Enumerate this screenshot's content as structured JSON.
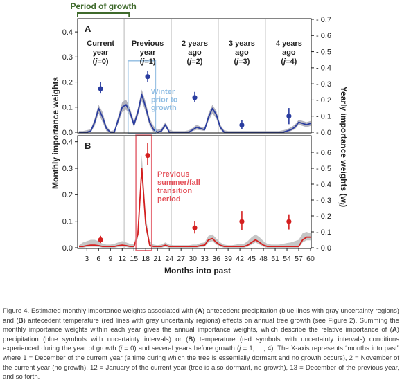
{
  "figure": {
    "growth_bracket_label": "Period of growth",
    "x_label": "Months into past",
    "y_left_label": "Monthly importance weights",
    "y_right_label": "Yearly importance weights (w",
    "y_right_label_sub": "j",
    "y_right_label_end": ")",
    "panel_a_letter": "A",
    "panel_b_letter": "B",
    "year_labels": [
      {
        "l1": "Current",
        "l2": "year",
        "j": "0"
      },
      {
        "l1": "Previous",
        "l2": "year",
        "j": "1"
      },
      {
        "l1": "2 years",
        "l2": "ago",
        "j": "2"
      },
      {
        "l1": "3 years",
        "l2": "ago",
        "j": "3"
      },
      {
        "l1": "4 years",
        "l2": "ago",
        "j": "4"
      }
    ],
    "annotation_a": [
      "Winter",
      "prior to",
      "growth"
    ],
    "annotation_b": [
      "Previous",
      "summer/fall",
      "transition",
      "period"
    ],
    "colors": {
      "precip": "#2a3da0",
      "precip_band": "#a8a8b4",
      "temp": "#d41f1f",
      "temp_band": "#bcbcbc",
      "winter_box": "#9cc3e4",
      "winter_text": "#8fbde3",
      "summer_box": "#e6707a",
      "summer_text": "#e4525a",
      "growth_bracket": "#3f6a2c",
      "year_divider": "#b8b8b8"
    }
  },
  "chart_data": [
    {
      "type": "line",
      "panel": "A",
      "x_ticks": [
        3,
        6,
        9,
        12,
        15,
        18,
        21,
        24,
        27,
        30,
        33,
        36,
        39,
        42,
        45,
        48,
        51,
        54,
        57,
        60
      ],
      "xlim": [
        1,
        60
      ],
      "ylim_left": [
        0,
        0.45
      ],
      "left_ticks": [
        0.0,
        0.1,
        0.2,
        0.3,
        0.4
      ],
      "ylim_right": [
        0,
        0.7
      ],
      "right_ticks": [
        0.0,
        0.1,
        0.2,
        0.3,
        0.4,
        0.5,
        0.6,
        0.7
      ],
      "year_dividers": [
        12.5,
        24.5,
        36.5,
        48.5
      ],
      "growth_period": [
        1,
        12
      ],
      "monthly_x": [
        1,
        2,
        3,
        4,
        5,
        6,
        7,
        8,
        9,
        10,
        11,
        12,
        13,
        14,
        15,
        16,
        17,
        18,
        19,
        20,
        21,
        22,
        23,
        24,
        25,
        26,
        27,
        28,
        29,
        30,
        31,
        32,
        33,
        34,
        35,
        36,
        37,
        38,
        39,
        40,
        41,
        42,
        43,
        44,
        45,
        46,
        47,
        48,
        49,
        50,
        51,
        52,
        53,
        54,
        55,
        56,
        57,
        58,
        59,
        60
      ],
      "monthly_values": [
        0.0,
        0.0,
        0.0,
        0.005,
        0.04,
        0.095,
        0.06,
        0.015,
        0.0,
        0.0,
        0.05,
        0.1,
        0.11,
        0.08,
        0.03,
        0.08,
        0.15,
        0.1,
        0.04,
        0.01,
        0.0,
        0.005,
        0.03,
        0.0,
        0.0,
        0.0,
        0.0,
        0.0,
        0.0,
        0.01,
        0.02,
        0.015,
        0.01,
        0.06,
        0.095,
        0.07,
        0.02,
        0.0,
        0.0,
        0.0,
        0.0,
        0.0,
        0.0,
        0.0,
        0.0,
        0.0,
        0.0,
        0.0,
        0.0,
        0.0,
        0.0,
        0.0,
        0.0,
        0.005,
        0.01,
        0.02,
        0.04,
        0.035,
        0.03,
        0.035
      ],
      "monthly_lower": [
        0.0,
        0.0,
        0.0,
        0.0,
        0.025,
        0.075,
        0.04,
        0.005,
        0.0,
        0.0,
        0.035,
        0.08,
        0.09,
        0.065,
        0.02,
        0.065,
        0.125,
        0.08,
        0.025,
        0.0,
        0.0,
        0.0,
        0.02,
        0.0,
        0.0,
        0.0,
        0.0,
        0.0,
        0.0,
        0.005,
        0.01,
        0.008,
        0.005,
        0.045,
        0.075,
        0.055,
        0.01,
        0.0,
        0.0,
        0.0,
        0.0,
        0.0,
        0.0,
        0.0,
        0.0,
        0.0,
        0.0,
        0.0,
        0.0,
        0.0,
        0.0,
        0.0,
        0.0,
        0.0,
        0.005,
        0.012,
        0.03,
        0.025,
        0.02,
        0.025
      ],
      "monthly_upper": [
        0.005,
        0.005,
        0.008,
        0.012,
        0.055,
        0.11,
        0.08,
        0.025,
        0.005,
        0.008,
        0.065,
        0.12,
        0.13,
        0.095,
        0.045,
        0.095,
        0.17,
        0.12,
        0.055,
        0.025,
        0.01,
        0.015,
        0.04,
        0.01,
        0.005,
        0.005,
        0.005,
        0.005,
        0.008,
        0.018,
        0.03,
        0.022,
        0.018,
        0.075,
        0.11,
        0.085,
        0.03,
        0.008,
        0.005,
        0.005,
        0.005,
        0.005,
        0.005,
        0.005,
        0.005,
        0.005,
        0.005,
        0.005,
        0.005,
        0.005,
        0.005,
        0.005,
        0.008,
        0.012,
        0.02,
        0.03,
        0.05,
        0.045,
        0.04,
        0.045
      ],
      "yearly_points": [
        {
          "year": 0,
          "x": 6.5,
          "w": 0.27,
          "low": 0.24,
          "high": 0.31
        },
        {
          "year": 1,
          "x": 18.5,
          "w": 0.345,
          "low": 0.31,
          "high": 0.38
        },
        {
          "year": 2,
          "x": 30.5,
          "w": 0.215,
          "low": 0.185,
          "high": 0.25
        },
        {
          "year": 3,
          "x": 42.5,
          "w": 0.045,
          "low": 0.02,
          "high": 0.075
        },
        {
          "year": 4,
          "x": 54.5,
          "w": 0.1,
          "low": 0.05,
          "high": 0.15
        }
      ],
      "highlight_box": {
        "x_from": 13.5,
        "x_to": 20.5,
        "y_from": -0.005,
        "y_to": 0.285
      }
    },
    {
      "type": "line",
      "panel": "B",
      "x_ticks": [
        3,
        6,
        9,
        12,
        15,
        18,
        21,
        24,
        27,
        30,
        33,
        36,
        39,
        42,
        45,
        48,
        51,
        54,
        57,
        60
      ],
      "xlim": [
        1,
        60
      ],
      "ylim_left": [
        0,
        0.42
      ],
      "left_ticks": [
        0.0,
        0.1,
        0.2,
        0.3,
        0.4
      ],
      "ylim_right": [
        0,
        0.7
      ],
      "right_ticks": [
        0.0,
        0.1,
        0.2,
        0.3,
        0.4,
        0.5,
        0.6
      ],
      "year_dividers": [
        12.5,
        24.5,
        36.5,
        48.5
      ],
      "monthly_x": [
        1,
        2,
        3,
        4,
        5,
        6,
        7,
        8,
        9,
        10,
        11,
        12,
        13,
        14,
        15,
        16,
        17,
        18,
        19,
        20,
        21,
        22,
        23,
        24,
        25,
        26,
        27,
        28,
        29,
        30,
        31,
        32,
        33,
        34,
        35,
        36,
        37,
        38,
        39,
        40,
        41,
        42,
        43,
        44,
        45,
        46,
        47,
        48,
        49,
        50,
        51,
        52,
        53,
        54,
        55,
        56,
        57,
        58,
        59,
        60
      ],
      "monthly_values": [
        0.005,
        0.005,
        0.008,
        0.01,
        0.01,
        0.008,
        0.005,
        0.005,
        0.005,
        0.005,
        0.008,
        0.01,
        0.008,
        0.005,
        0.005,
        0.05,
        0.3,
        0.09,
        0.01,
        0.005,
        0.005,
        0.005,
        0.01,
        0.005,
        0.005,
        0.005,
        0.005,
        0.005,
        0.005,
        0.005,
        0.005,
        0.008,
        0.01,
        0.03,
        0.035,
        0.02,
        0.01,
        0.005,
        0.005,
        0.005,
        0.005,
        0.005,
        0.005,
        0.01,
        0.02,
        0.03,
        0.02,
        0.01,
        0.005,
        0.005,
        0.005,
        0.005,
        0.005,
        0.005,
        0.005,
        0.005,
        0.005,
        0.03,
        0.04,
        0.04
      ],
      "monthly_lower": [
        0.0,
        0.0,
        0.003,
        0.004,
        0.004,
        0.003,
        0.0,
        0.0,
        0.0,
        0.0,
        0.003,
        0.004,
        0.003,
        0.0,
        0.0,
        0.035,
        0.27,
        0.07,
        0.004,
        0.0,
        0.0,
        0.0,
        0.004,
        0.0,
        0.0,
        0.0,
        0.0,
        0.0,
        0.0,
        0.0,
        0.0,
        0.003,
        0.004,
        0.02,
        0.025,
        0.012,
        0.004,
        0.0,
        0.0,
        0.0,
        0.0,
        0.0,
        0.0,
        0.004,
        0.012,
        0.02,
        0.012,
        0.004,
        0.0,
        0.0,
        0.0,
        0.0,
        0.0,
        0.0,
        0.0,
        0.0,
        0.0,
        0.02,
        0.028,
        0.028
      ],
      "monthly_upper": [
        0.01,
        0.02,
        0.025,
        0.03,
        0.03,
        0.025,
        0.015,
        0.012,
        0.012,
        0.015,
        0.02,
        0.025,
        0.02,
        0.015,
        0.015,
        0.07,
        0.35,
        0.12,
        0.025,
        0.012,
        0.01,
        0.012,
        0.02,
        0.012,
        0.01,
        0.01,
        0.01,
        0.01,
        0.01,
        0.012,
        0.012,
        0.018,
        0.02,
        0.045,
        0.05,
        0.035,
        0.02,
        0.012,
        0.01,
        0.01,
        0.012,
        0.015,
        0.015,
        0.025,
        0.04,
        0.05,
        0.04,
        0.025,
        0.015,
        0.012,
        0.012,
        0.012,
        0.015,
        0.018,
        0.02,
        0.025,
        0.03,
        0.055,
        0.06,
        0.055
      ],
      "yearly_points": [
        {
          "year": 0,
          "x": 6.5,
          "w": 0.05,
          "low": 0.03,
          "high": 0.075
        },
        {
          "year": 1,
          "x": 18.5,
          "w": 0.58,
          "low": 0.52,
          "high": 0.66
        },
        {
          "year": 2,
          "x": 30.5,
          "w": 0.125,
          "low": 0.09,
          "high": 0.165
        },
        {
          "year": 3,
          "x": 42.5,
          "w": 0.165,
          "low": 0.11,
          "high": 0.23
        },
        {
          "year": 4,
          "x": 54.5,
          "w": 0.165,
          "low": 0.115,
          "high": 0.21
        }
      ],
      "highlight_box": {
        "x_from": 15.5,
        "x_to": 19.5,
        "y_from": -0.01,
        "y_to": 0.425
      }
    }
  ],
  "caption": {
    "parts": [
      {
        "t": "Figure 4. Estimated monthly importance weights associated with ("
      },
      {
        "t": "A",
        "b": true
      },
      {
        "t": ") antecedent precipitation (blue lines with gray uncertainty regions) and ("
      },
      {
        "t": "B",
        "b": true
      },
      {
        "t": ") antecedent temperature (red lines with gray uncertainty regions) effects on annual tree growth (see Figure 2). Summing the monthly importance weights within each year gives the annual importance weights, which describe the relative importance of ("
      },
      {
        "t": "A",
        "b": true
      },
      {
        "t": ") precipitation (blue symbols with uncertainty intervals) or ("
      },
      {
        "t": "B",
        "b": true
      },
      {
        "t": ") temperature (red symbols with uncertainty intervals) conditions experienced during the year of growth ("
      },
      {
        "t": "j",
        "i": true
      },
      {
        "t": " = 0) and several years before growth ("
      },
      {
        "t": "j",
        "i": true
      },
      {
        "t": " = 1, …, 4). The X-axis represents “months into past” where 1 = December of the current year (a time during which the tree is essentially dormant and no growth occurs), 2 = November of the current year (no growth), 12 = January of the current year (tree is also dormant, no growth), 13 = December of the previous year, and so forth."
      }
    ]
  }
}
